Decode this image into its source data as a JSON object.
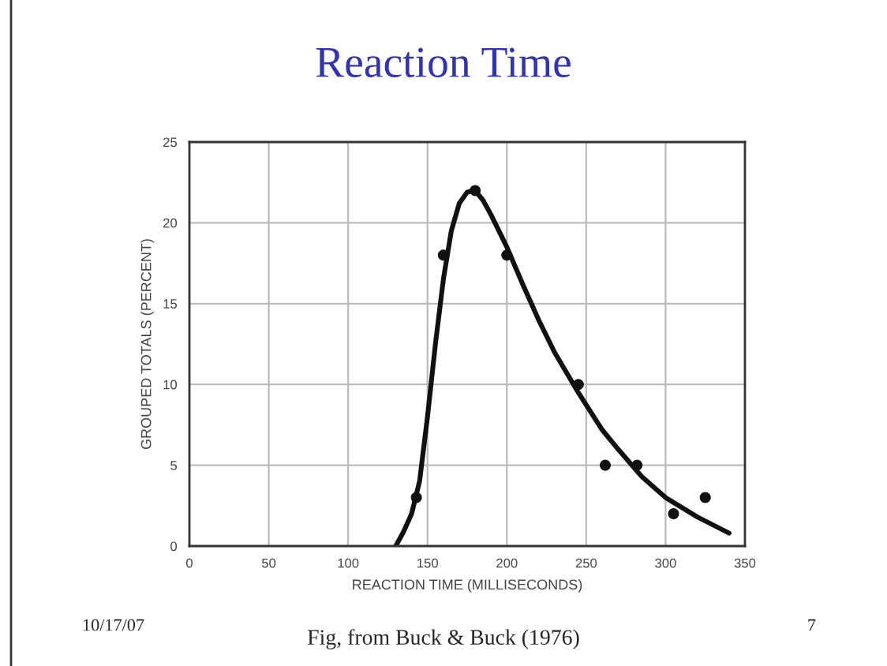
{
  "chart_data": {
    "type": "scatter",
    "title": "Reaction Time",
    "xlabel": "REACTION TIME (MILLISECONDS)",
    "ylabel": "GROUPED TOTALS (PERCENT)",
    "xlim": [
      0,
      350
    ],
    "ylim": [
      0,
      25
    ],
    "xticks": [
      0,
      50,
      100,
      150,
      200,
      250,
      300,
      350
    ],
    "yticks": [
      0,
      5,
      10,
      15,
      20,
      25
    ],
    "grid": true,
    "series": [
      {
        "color": "#111111",
        "marker": "circle",
        "x": [
          143,
          160,
          180,
          200,
          245,
          262,
          282,
          305,
          325
        ],
        "values": [
          3,
          18,
          22,
          18,
          10,
          5,
          5,
          2,
          3
        ]
      },
      {
        "type": "line",
        "color": "#111111",
        "marker": "none",
        "line_style": "solid",
        "x": [
          130,
          135,
          140,
          145,
          150,
          155,
          160,
          165,
          170,
          175,
          180,
          185,
          190,
          200,
          210,
          220,
          230,
          245,
          260,
          270,
          285,
          300,
          320,
          340
        ],
        "values": [
          0,
          0.9,
          2,
          4,
          8,
          12.5,
          16.5,
          19.5,
          21.2,
          21.9,
          22,
          21.4,
          20.5,
          18.5,
          16.2,
          14,
          12,
          9.5,
          7.2,
          6,
          4.3,
          3,
          1.8,
          0.8
        ]
      }
    ],
    "annotations": [
      "10/17/07",
      "Fig, from Buck & Buck (1976)",
      "7"
    ]
  }
}
